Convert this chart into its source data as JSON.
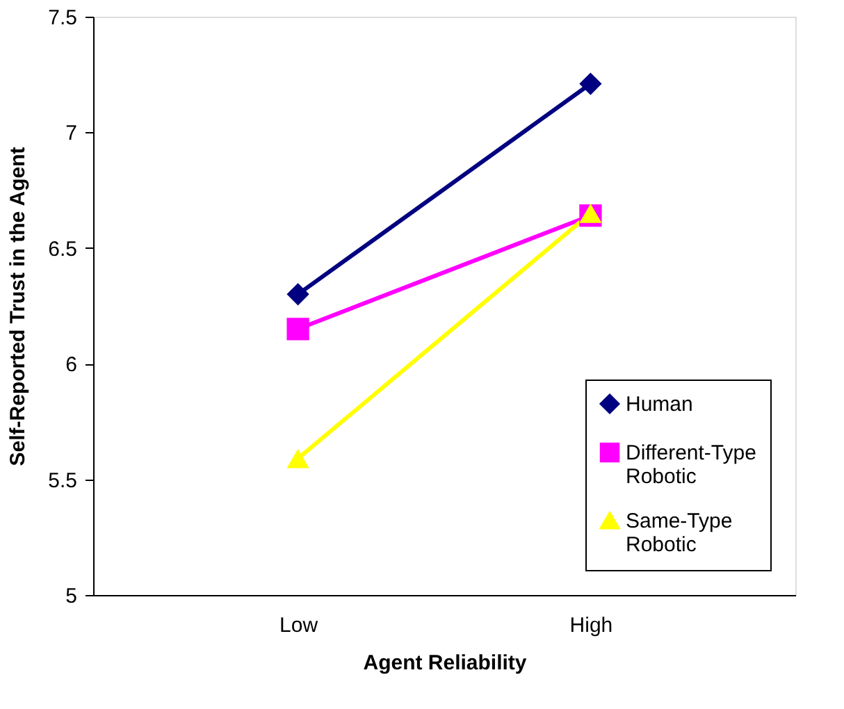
{
  "chart_data": {
    "type": "line",
    "xlabel": "Agent Reliability",
    "ylabel": "Self-Reported Trust in the Agent",
    "categories": [
      "Low",
      "High"
    ],
    "series": [
      {
        "name": "Human",
        "color": "#000080",
        "marker": "diamond",
        "values": [
          6.3,
          7.21
        ]
      },
      {
        "name": "Different-Type Robotic",
        "color": "#ff00ff",
        "marker": "square",
        "values": [
          6.15,
          6.64
        ]
      },
      {
        "name": "Same-Type Robotic",
        "color": "#ffff00",
        "marker": "triangle",
        "values": [
          5.59,
          6.65
        ]
      }
    ],
    "ylim": [
      5,
      7.5
    ],
    "yticks": [
      5,
      5.5,
      6,
      6.5,
      7,
      7.5
    ],
    "grid": false,
    "legend": "bottom right",
    "line_style": "solid"
  }
}
